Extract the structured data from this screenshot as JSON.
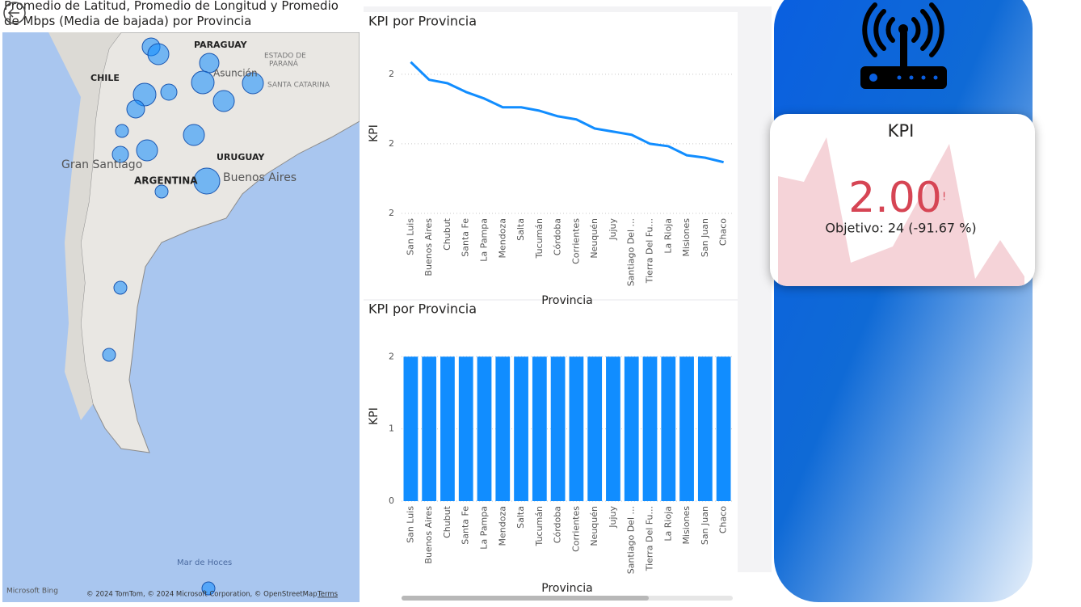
{
  "map": {
    "title": "Promedio de Latitud, Promedio de Longitud y Promedio de Mbps (Media de bajada) por Provincia",
    "labels": [
      "PARAGUAY",
      "CHILE",
      "Gran Santiago",
      "URUGUAY",
      "ARGENTINA",
      "Buenos Aires",
      "ESTADO DE",
      "PARANÁ",
      "SANTA CATARINA",
      "Asunción",
      "Mar de Hoces"
    ],
    "brand": "Microsoft Bing",
    "attribution": "© 2024 TomTom, © 2024 Microsoft Corporation, © OpenStreetMap",
    "terms": "Terms"
  },
  "chart_data": [
    {
      "type": "line",
      "title": "KPI por Provincia",
      "x_label": "Provincia",
      "y_label": "KPI",
      "color": "#118DFF",
      "grid": true,
      "categories": [
        "San Luis",
        "Buenos Aires",
        "Chubut",
        "Santa Fe",
        "La Pampa",
        "Mendoza",
        "Salta",
        "Tucumán",
        "Córdoba",
        "Corrientes",
        "Neuquén",
        "Jujuy",
        "Santiago Del ...",
        "Tierra Del Fu...",
        "La Rioja",
        "Misiones",
        "San Juan",
        "Chaco"
      ],
      "values": [
        2.00435,
        2.00384,
        2.00374,
        2.00349,
        2.0033,
        2.00305,
        2.00305,
        2.00295,
        2.00279,
        2.0027,
        2.00244,
        2.00235,
        2.00226,
        2.002,
        2.00193,
        2.00167,
        2.0016,
        2.00147
      ],
      "ylim": [
        2.0,
        2.0046
      ],
      "yticks": [
        {
          "value": 2.0,
          "label": "2"
        },
        {
          "value": 2.002,
          "label": "2"
        },
        {
          "value": 2.004,
          "label": "2"
        }
      ]
    },
    {
      "type": "bar",
      "title": "KPI por Provincia",
      "x_label": "Provincia",
      "y_label": "KPI",
      "color": "#118DFF",
      "grid": true,
      "categories": [
        "San Luis",
        "Buenos Aires",
        "Chubut",
        "Santa Fe",
        "La Pampa",
        "Mendoza",
        "Salta",
        "Tucumán",
        "Córdoba",
        "Corrientes",
        "Neuquén",
        "Jujuy",
        "Santiago Del ...",
        "Tierra Del Fu...",
        "La Rioja",
        "Misiones",
        "San Juan",
        "Chaco"
      ],
      "values": [
        2,
        2,
        2,
        2,
        2,
        2,
        2,
        2,
        2,
        2,
        2,
        2,
        2,
        2,
        2,
        2,
        2,
        2
      ],
      "ylim": [
        0,
        2.35
      ],
      "yticks": [
        0,
        1,
        2
      ]
    }
  ],
  "kpi_card": {
    "title": "KPI",
    "value": "2.00",
    "alert": "!",
    "goal": "Objetivo: 24 (-91.67 %)"
  }
}
